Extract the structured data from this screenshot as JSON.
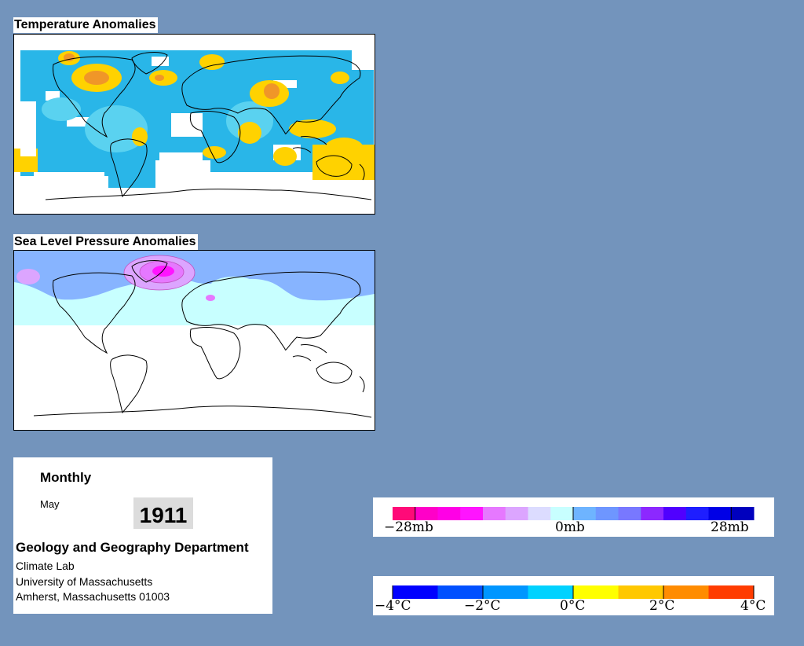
{
  "temperature_map": {
    "title": "Temperature Anomalies"
  },
  "pressure_map": {
    "title": "Sea Level Pressure Anomalies"
  },
  "info": {
    "period": "Monthly",
    "month": "May",
    "year": "1911",
    "department": "Geology and Geography Department",
    "lab": "Climate Lab",
    "university": "University of Massachusetts",
    "address": "Amherst, Massachusetts 01003"
  },
  "pressure_legend": {
    "labels": [
      "−28mb",
      "0mb",
      "28mb"
    ],
    "colors": [
      "#ff0a78",
      "#ff00c8",
      "#ff00e6",
      "#ff14ff",
      "#e678ff",
      "#dca5ff",
      "#dcdcff",
      "#c8ffff",
      "#6eb4ff",
      "#6e96ff",
      "#7878ff",
      "#8c28ff",
      "#5000ff",
      "#1e1eff",
      "#0000e6",
      "#0000be"
    ]
  },
  "temperature_legend": {
    "labels": [
      "−4°C",
      "−2°C",
      "0°C",
      "2°C",
      "4°C"
    ],
    "colors": [
      "#0000ff",
      "#0050ff",
      "#0096ff",
      "#00d2ff",
      "#ffff00",
      "#ffc800",
      "#ff8c00",
      "#ff3c00"
    ]
  },
  "colors": {
    "background": "#7394bc",
    "anomaly_cold": "#19b4e6",
    "anomaly_cool": "#5ad2f0",
    "anomaly_warm": "#ffd200",
    "anomaly_hot": "#f09628",
    "pressure_low": "#e678ff",
    "pressure_high": "#87b4ff"
  }
}
